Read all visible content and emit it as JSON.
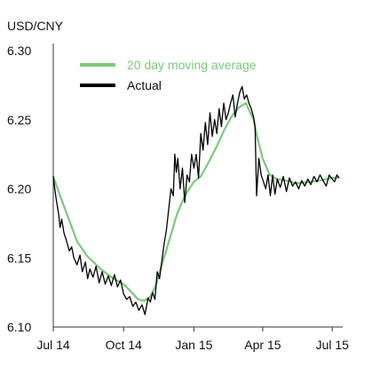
{
  "chart_data": {
    "type": "line",
    "unit_label": "USD/CNY",
    "title": "",
    "xlabel": "",
    "ylabel": "",
    "ylim": [
      6.1,
      6.3
    ],
    "y_ticks": [
      "6.30",
      "6.25",
      "6.20",
      "6.15",
      "6.10"
    ],
    "y_tick_values": [
      6.3,
      6.25,
      6.2,
      6.15,
      6.1
    ],
    "x_ticks": [
      "Jul 14",
      "Oct 14",
      "Jan 15",
      "Apr 15",
      "Jul 15"
    ],
    "x_tick_dates": [
      "2014-07-01",
      "2014-10-01",
      "2015-01-01",
      "2015-04-01",
      "2015-07-01"
    ],
    "x_range": [
      "2014-07-01",
      "2015-07-10"
    ],
    "grid": false,
    "legend_position": "top-left",
    "colors": {
      "ma": "#7dc87d",
      "actual": "#000000",
      "axis": "#333333"
    },
    "series": [
      {
        "name": "20 day moving average",
        "color": "#7dc87d",
        "x": [
          "2014-07-01",
          "2014-07-10",
          "2014-07-20",
          "2014-08-01",
          "2014-08-15",
          "2014-09-01",
          "2014-09-15",
          "2014-10-01",
          "2014-10-10",
          "2014-10-20",
          "2014-10-28",
          "2014-11-05",
          "2014-11-12",
          "2014-11-20",
          "2014-12-01",
          "2014-12-10",
          "2014-12-20",
          "2015-01-01",
          "2015-01-10",
          "2015-01-20",
          "2015-02-01",
          "2015-02-10",
          "2015-02-20",
          "2015-03-01",
          "2015-03-10",
          "2015-03-20",
          "2015-03-25",
          "2015-04-01",
          "2015-04-10",
          "2015-04-20",
          "2015-05-01",
          "2015-05-15",
          "2015-06-01",
          "2015-06-15",
          "2015-07-01",
          "2015-07-10"
        ],
        "y": [
          6.209,
          6.195,
          6.18,
          6.162,
          6.151,
          6.142,
          6.136,
          6.131,
          6.126,
          6.12,
          6.119,
          6.122,
          6.13,
          6.145,
          6.165,
          6.182,
          6.195,
          6.205,
          6.209,
          6.219,
          6.232,
          6.243,
          6.253,
          6.259,
          6.262,
          6.25,
          6.237,
          6.222,
          6.21,
          6.207,
          6.206,
          6.204,
          6.205,
          6.206,
          6.208,
          6.208
        ]
      },
      {
        "name": "Actual",
        "color": "#000000",
        "x": [
          "2014-07-01",
          "2014-07-03",
          "2014-07-05",
          "2014-07-08",
          "2014-07-10",
          "2014-07-12",
          "2014-07-15",
          "2014-07-18",
          "2014-07-22",
          "2014-07-25",
          "2014-07-28",
          "2014-08-01",
          "2014-08-05",
          "2014-08-08",
          "2014-08-12",
          "2014-08-15",
          "2014-08-18",
          "2014-08-22",
          "2014-08-26",
          "2014-08-30",
          "2014-09-03",
          "2014-09-07",
          "2014-09-11",
          "2014-09-15",
          "2014-09-19",
          "2014-09-23",
          "2014-09-27",
          "2014-10-01",
          "2014-10-05",
          "2014-10-09",
          "2014-10-13",
          "2014-10-17",
          "2014-10-21",
          "2014-10-25",
          "2014-10-29",
          "2014-11-02",
          "2014-11-05",
          "2014-11-08",
          "2014-11-11",
          "2014-11-14",
          "2014-11-17",
          "2014-11-20",
          "2014-11-23",
          "2014-11-26",
          "2014-11-29",
          "2014-12-02",
          "2014-12-05",
          "2014-12-07",
          "2014-12-09",
          "2014-12-11",
          "2014-12-14",
          "2014-12-17",
          "2014-12-20",
          "2014-12-23",
          "2014-12-26",
          "2014-12-29",
          "2015-01-01",
          "2015-01-04",
          "2015-01-07",
          "2015-01-10",
          "2015-01-13",
          "2015-01-16",
          "2015-01-19",
          "2015-01-22",
          "2015-01-25",
          "2015-01-28",
          "2015-01-31",
          "2015-02-03",
          "2015-02-06",
          "2015-02-09",
          "2015-02-12",
          "2015-02-15",
          "2015-02-18",
          "2015-02-21",
          "2015-02-24",
          "2015-02-27",
          "2015-03-02",
          "2015-03-05",
          "2015-03-08",
          "2015-03-11",
          "2015-03-14",
          "2015-03-17",
          "2015-03-20",
          "2015-03-22",
          "2015-03-24",
          "2015-03-27",
          "2015-03-30",
          "2015-04-02",
          "2015-04-05",
          "2015-04-08",
          "2015-04-11",
          "2015-04-14",
          "2015-04-17",
          "2015-04-20",
          "2015-04-24",
          "2015-04-28",
          "2015-05-02",
          "2015-05-06",
          "2015-05-10",
          "2015-05-14",
          "2015-05-18",
          "2015-05-22",
          "2015-05-26",
          "2015-05-30",
          "2015-06-03",
          "2015-06-07",
          "2015-06-11",
          "2015-06-15",
          "2015-06-19",
          "2015-06-23",
          "2015-06-27",
          "2015-07-01",
          "2015-07-04",
          "2015-07-07",
          "2015-07-10"
        ],
        "y": [
          6.209,
          6.2,
          6.192,
          6.182,
          6.172,
          6.178,
          6.168,
          6.163,
          6.155,
          6.158,
          6.15,
          6.145,
          6.152,
          6.14,
          6.147,
          6.135,
          6.142,
          6.136,
          6.144,
          6.132,
          6.14,
          6.131,
          6.137,
          6.13,
          6.138,
          6.129,
          6.134,
          6.124,
          6.12,
          6.122,
          6.115,
          6.118,
          6.112,
          6.116,
          6.109,
          6.121,
          6.118,
          6.125,
          6.12,
          6.14,
          6.135,
          6.148,
          6.16,
          6.17,
          6.185,
          6.2,
          6.195,
          6.225,
          6.212,
          6.222,
          6.2,
          6.215,
          6.19,
          6.21,
          6.205,
          6.225,
          6.215,
          6.225,
          6.208,
          6.24,
          6.228,
          6.248,
          6.232,
          6.255,
          6.238,
          6.25,
          6.24,
          6.258,
          6.245,
          6.262,
          6.25,
          6.255,
          6.262,
          6.268,
          6.252,
          6.262,
          6.27,
          6.274,
          6.265,
          6.268,
          6.262,
          6.258,
          6.252,
          6.245,
          6.195,
          6.222,
          6.21,
          6.205,
          6.2,
          6.21,
          6.195,
          6.21,
          6.196,
          6.207,
          6.201,
          6.209,
          6.198,
          6.208,
          6.202,
          6.205,
          6.2,
          6.206,
          6.202,
          6.207,
          6.203,
          6.209,
          6.205,
          6.21,
          6.206,
          6.202,
          6.21,
          6.207,
          6.205,
          6.21,
          6.208
        ]
      }
    ]
  }
}
